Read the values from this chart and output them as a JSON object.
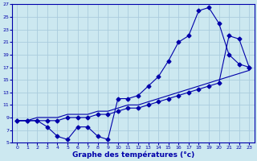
{
  "xlabel": "Graphe des températures (°c)",
  "bg_color": "#cce8f0",
  "grid_color": "#aaccdd",
  "line_color": "#0000aa",
  "xlim": [
    -0.5,
    23.5
  ],
  "ylim": [
    5,
    27
  ],
  "xticks": [
    0,
    1,
    2,
    3,
    4,
    5,
    6,
    7,
    8,
    9,
    10,
    11,
    12,
    13,
    14,
    15,
    16,
    17,
    18,
    19,
    20,
    21,
    22,
    23
  ],
  "yticks": [
    5,
    7,
    9,
    11,
    13,
    15,
    17,
    19,
    21,
    23,
    25,
    27
  ],
  "line1_x": [
    0,
    1,
    2,
    3,
    4,
    5,
    6,
    7,
    8,
    9,
    10,
    11,
    12,
    13,
    14,
    15,
    16,
    17,
    18,
    19,
    20,
    21,
    22,
    23
  ],
  "line1_y": [
    8.5,
    8.5,
    8.5,
    7.5,
    6,
    5.5,
    7.5,
    7.5,
    6,
    5.5,
    12,
    12,
    12.5,
    14,
    15.5,
    18,
    21,
    22,
    26,
    26.5,
    24,
    19,
    17.5,
    17
  ],
  "line2_x": [
    0,
    1,
    2,
    3,
    4,
    5,
    6,
    7,
    8,
    9,
    10,
    11,
    12,
    13,
    14,
    15,
    16,
    17,
    18,
    19,
    20,
    21,
    22,
    23
  ],
  "line2_y": [
    8.5,
    8.5,
    9,
    9,
    9,
    9.5,
    9.5,
    9.5,
    10,
    10,
    10.5,
    11,
    11,
    11.5,
    12,
    12.5,
    13,
    13.5,
    14,
    14.5,
    15,
    15.5,
    16,
    16.5
  ],
  "line3_x": [
    0,
    1,
    2,
    3,
    4,
    5,
    6,
    7,
    8,
    9,
    10,
    11,
    12,
    13,
    14,
    15,
    16,
    17,
    18,
    19,
    20,
    21,
    22,
    23
  ],
  "line3_y": [
    8.5,
    8.5,
    8.5,
    8.5,
    8.5,
    9,
    9,
    9,
    9.5,
    9.5,
    10,
    10.5,
    10.5,
    11,
    11.5,
    12,
    12.5,
    13,
    13.5,
    14,
    14.5,
    22,
    21.5,
    17
  ]
}
